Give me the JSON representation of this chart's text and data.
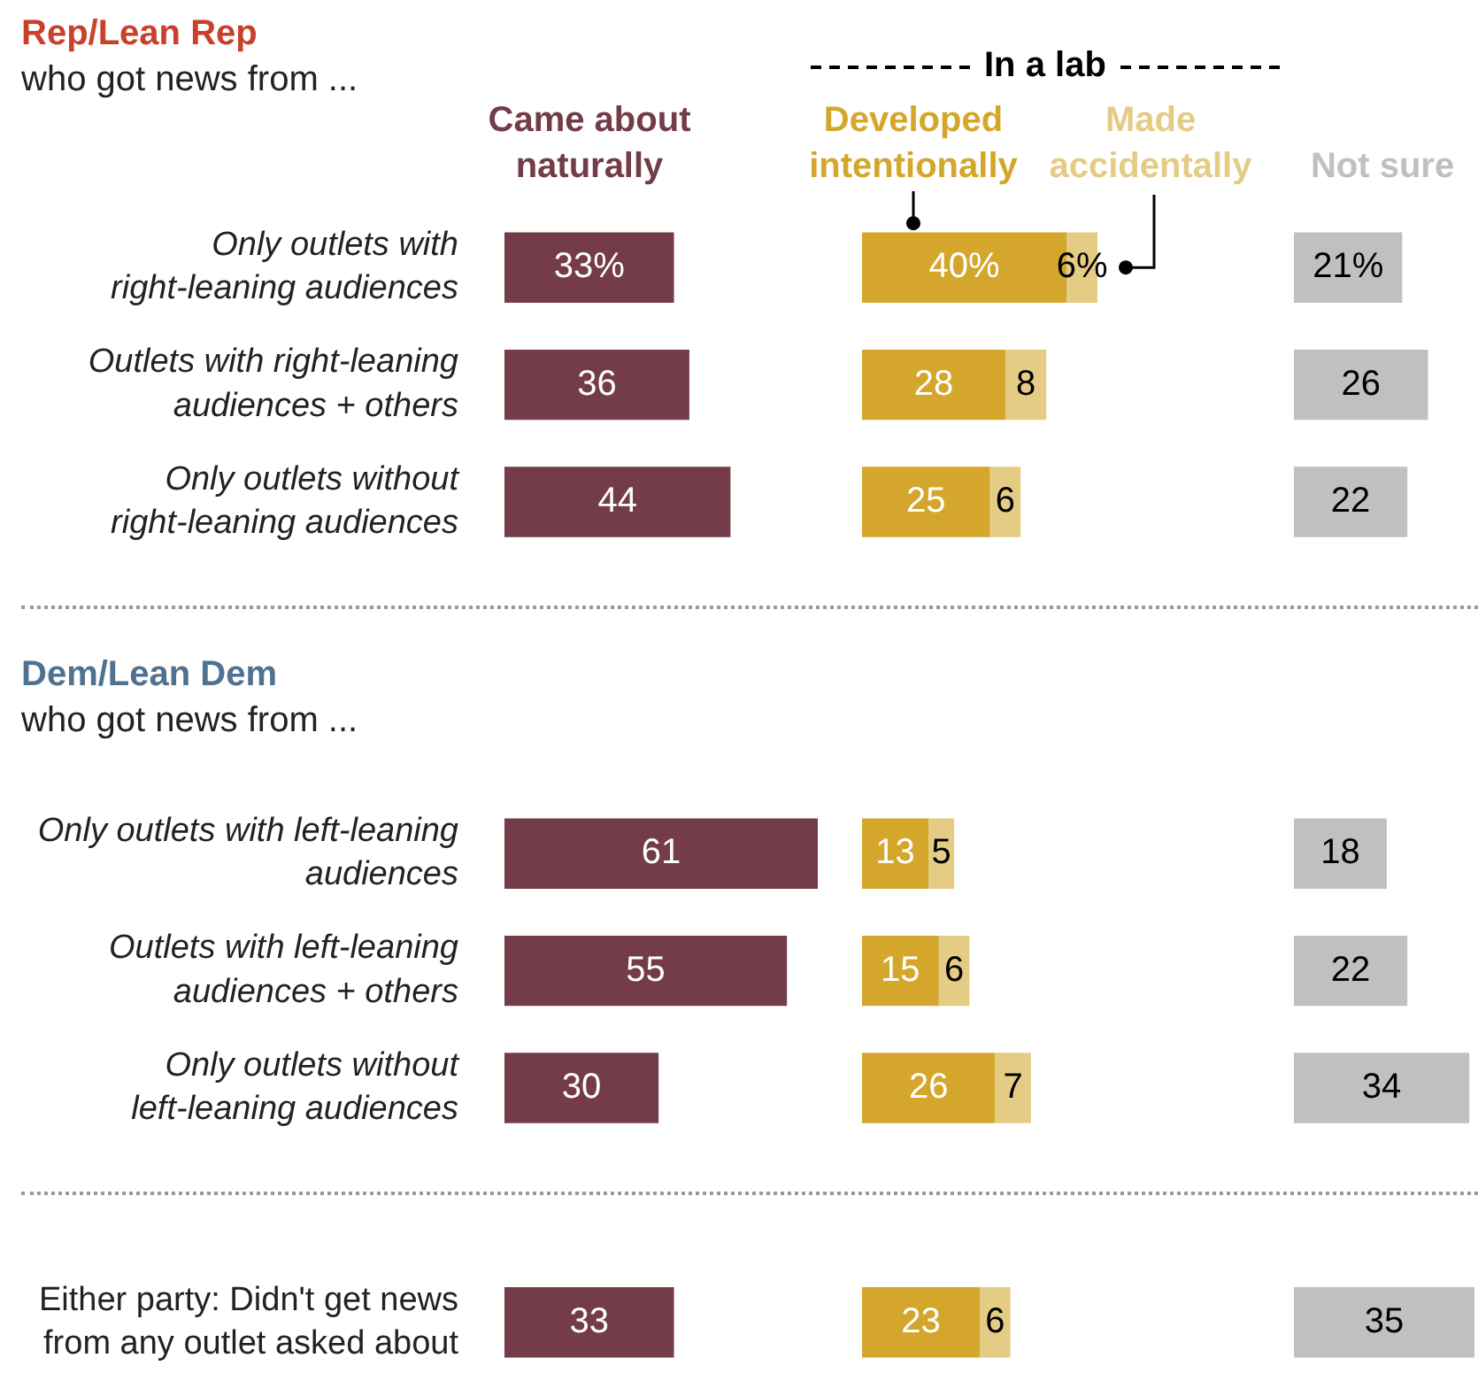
{
  "chart_data": [
    {
      "type": "bar",
      "orientation": "horizontal",
      "tick_labels": "y",
      "annotations": [
        "Rep/Lean Rep",
        "who got news from ...",
        "Dem/Lean Dem",
        "who got news from ..."
      ],
      "categories": [
        "Only outlets with right-leaning audiences",
        "Outlets with right-leaning audiences + others",
        "Only outlets without right-leaning audiences",
        null,
        null,
        "Only outlets with left-leaning audiences",
        "Outlets with left-leaning audiences + others",
        "Only outlets without left-leaning audiences",
        null,
        "Either party: Didn't get news from any outlet asked about"
      ],
      "series": [
        {
          "name": "Came about naturally",
          "color": "#733c48",
          "values": [
            33,
            36,
            44,
            null,
            null,
            61,
            55,
            30,
            null,
            33
          ],
          "value_labels": [
            "33%",
            "36",
            "44",
            null,
            null,
            "61",
            "55",
            "30",
            null,
            "33"
          ]
        }
      ]
    },
    {
      "type": "bar",
      "orientation": "horizontal",
      "stacked": true,
      "tick_labels": false,
      "title": "In a lab",
      "series": [
        {
          "name": "Developed intentionally",
          "color": "#d4a72c",
          "values": [
            40,
            28,
            25,
            null,
            null,
            13,
            15,
            26,
            null,
            23
          ],
          "value_labels": [
            "40%",
            "28",
            "25",
            null,
            null,
            "13",
            "15",
            "26",
            null,
            "23"
          ]
        },
        {
          "name": "Made accidentally",
          "color": "#e5cc85",
          "values": [
            6,
            8,
            6,
            null,
            null,
            5,
            6,
            7,
            null,
            6
          ],
          "value_labels": [
            "6%",
            "8",
            "6",
            null,
            null,
            "5",
            "6",
            "7",
            null,
            "6"
          ]
        }
      ]
    },
    {
      "type": "bar",
      "orientation": "horizontal",
      "tick_labels": false,
      "series": [
        {
          "name": "Not sure",
          "color": "#c0c0c0",
          "values": [
            21,
            26,
            22,
            null,
            null,
            18,
            22,
            34,
            null,
            35
          ],
          "value_labels": [
            "21%",
            "26",
            "22",
            null,
            null,
            "18",
            "22",
            "34",
            null,
            "35"
          ]
        }
      ]
    }
  ]
}
